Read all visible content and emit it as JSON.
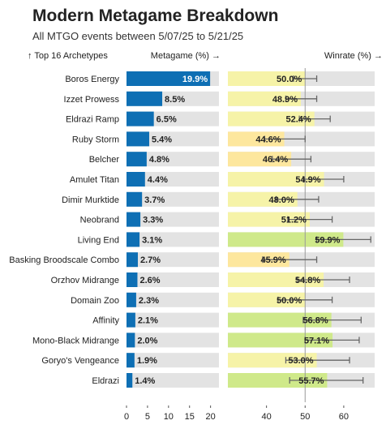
{
  "title": "Modern Metagame Breakdown",
  "subtitle": "All MTGO events between 5/07/25 to 5/21/25",
  "headers": {
    "archetypes": "↑ Top 16 Archetypes",
    "metagame": "Metagame (%) →",
    "winrate": "Winrate (%) →"
  },
  "colors": {
    "meta_bar": "#0e6fb4",
    "track": "#e3e3e3",
    "win_low": "#fde79e",
    "win_mid": "#f6f3a8",
    "win_high": "#cfe98a",
    "error_bar": "#666666"
  },
  "chart_data": {
    "type": "bar",
    "categories": [
      "Boros Energy",
      "Izzet Prowess",
      "Eldrazi Ramp",
      "Ruby Storm",
      "Belcher",
      "Amulet Titan",
      "Dimir Murktide",
      "Neobrand",
      "Living End",
      "Basking Broodscale Combo",
      "Orzhov Midrange",
      "Domain Zoo",
      "Affinity",
      "Mono-Black Midrange",
      "Goryo's Vengeance",
      "Eldrazi"
    ],
    "metagame": {
      "values": [
        19.9,
        8.5,
        6.5,
        5.4,
        4.8,
        4.4,
        3.7,
        3.3,
        3.1,
        2.7,
        2.6,
        2.3,
        2.1,
        2.0,
        1.9,
        1.4
      ],
      "labels": [
        "19.9%",
        "8.5%",
        "6.5%",
        "5.4%",
        "4.8%",
        "4.4%",
        "3.7%",
        "3.3%",
        "3.1%",
        "2.7%",
        "2.6%",
        "2.3%",
        "2.1%",
        "2.0%",
        "1.9%",
        "1.4%"
      ],
      "xlim": [
        0,
        22
      ],
      "ticks": [
        0,
        5,
        10,
        15,
        20
      ]
    },
    "winrate": {
      "values": [
        50.0,
        48.9,
        52.4,
        44.6,
        46.4,
        54.9,
        48.0,
        51.2,
        59.9,
        45.9,
        54.8,
        50.0,
        56.8,
        57.1,
        53.0,
        55.7
      ],
      "labels": [
        "50.0%",
        "48.9%",
        "52.4%",
        "44.6%",
        "46.4%",
        "54.9%",
        "48.0%",
        "51.2%",
        "59.9%",
        "45.9%",
        "54.8%",
        "50.0%",
        "56.8%",
        "57.1%",
        "53.0%",
        "55.7%"
      ],
      "ci_low": [
        47.0,
        45.0,
        48.5,
        39.5,
        41.5,
        49.5,
        42.5,
        45.5,
        53.0,
        39.0,
        48.0,
        43.0,
        49.5,
        50.0,
        45.0,
        46.0
      ],
      "ci_high": [
        53.0,
        53.0,
        56.5,
        50.0,
        51.5,
        60.0,
        53.5,
        57.0,
        67.0,
        53.0,
        61.5,
        57.0,
        64.5,
        64.0,
        61.5,
        65.0
      ],
      "xlim": [
        30,
        68
      ],
      "ticks": [
        40,
        50,
        60
      ],
      "reference_line": 50
    }
  }
}
